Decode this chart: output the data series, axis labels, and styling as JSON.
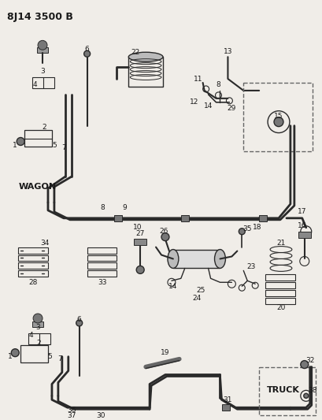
{
  "title": "8J14 3500 B",
  "bg_color": "#f0ede8",
  "line_color": "#2a2a2a",
  "label_color": "#1a1a1a",
  "wagon_label": "WAGON",
  "truck_label": "TRUCK",
  "figsize": [
    4.09,
    5.33
  ],
  "dpi": 100
}
